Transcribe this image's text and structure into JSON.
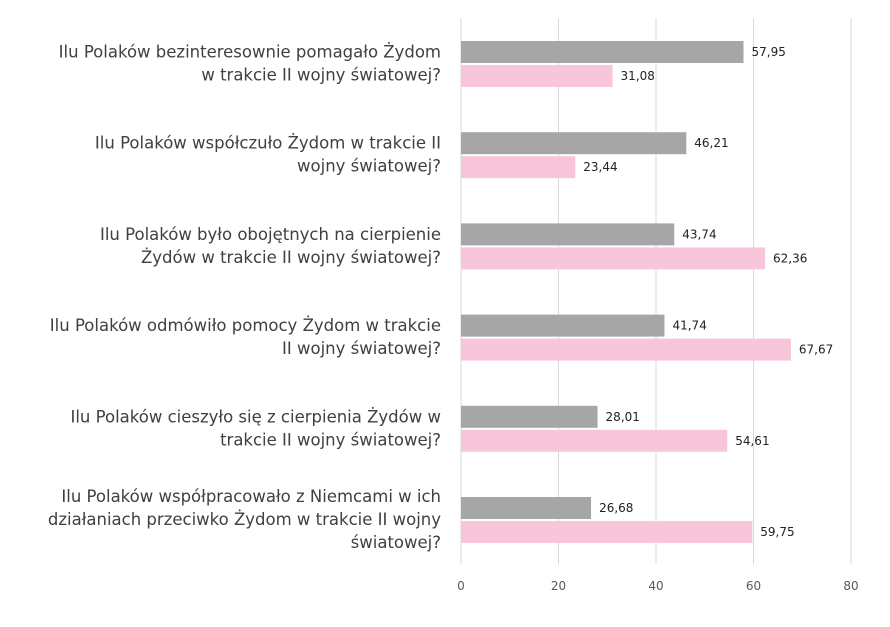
{
  "chart_data": {
    "type": "bar",
    "orientation": "horizontal",
    "categories": [
      "Ilu Polaków bezinteresownie pomagało Żydom w trakcie II wojny światowej?",
      "Ilu Polaków współczuło Żydom w trakcie II wojny światowej?",
      "Ilu Polaków było obojętnych na cierpienie Żydów w trakcie II wojny światowej?",
      "Ilu Polaków odmówiło pomocy Żydom w trakcie II wojny światowej?",
      "Ilu Polaków cieszyło się z cierpienia Żydów w trakcie II wojny światowej?",
      "Ilu Polaków współpracowało z Niemcami w ich działaniach przeciwko Żydom w trakcie II wojny światowej?"
    ],
    "category_lines": [
      [
        "Ilu Polaków bezinteresownie pomagało Żydom",
        "w trakcie II wojny światowej?"
      ],
      [
        "Ilu Polaków współczuło Żydom w trakcie II",
        "wojny światowej?"
      ],
      [
        "Ilu Polaków było obojętnych na cierpienie",
        "Żydów w trakcie II wojny światowej?"
      ],
      [
        "Ilu Polaków odmówiło pomocy Żydom w trakcie",
        "II wojny światowej?"
      ],
      [
        "Ilu Polaków cieszyło się z cierpienia Żydów w",
        "trakcie II wojny światowej?"
      ],
      [
        "Ilu Polaków współpracowało z Niemcami w ich",
        "działaniach przeciwko Żydom w trakcie II wojny",
        "światowej?"
      ]
    ],
    "series": [
      {
        "values": [
          57.95,
          46.21,
          43.74,
          41.74,
          28.01,
          26.68
        ],
        "color": "#a6a6a6"
      },
      {
        "values": [
          31.08,
          23.44,
          62.36,
          67.67,
          54.61,
          59.75
        ],
        "color": "#f7c6da"
      }
    ],
    "value_labels": [
      [
        "57,95",
        "46,21",
        "43,74",
        "41,74",
        "28,01",
        "26,68"
      ],
      [
        "31,08",
        "23,44",
        "62,36",
        "67,67",
        "54,61",
        "59,75"
      ]
    ],
    "xlim": [
      0,
      80
    ],
    "xticks": [
      "0",
      "20",
      "40",
      "60",
      "80"
    ],
    "grid": true,
    "legend": "none"
  }
}
